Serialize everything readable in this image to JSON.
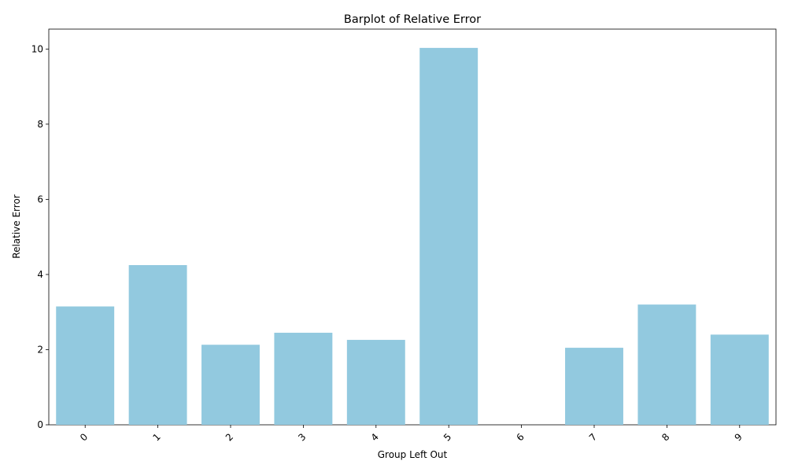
{
  "chart_data": {
    "type": "bar",
    "title": "Barplot of Relative Error",
    "xlabel": "Group Left Out",
    "ylabel": "Relative Error",
    "categories": [
      "0",
      "1",
      "2",
      "3",
      "4",
      "5",
      "6",
      "7",
      "8",
      "9"
    ],
    "values": [
      3.15,
      4.25,
      2.13,
      2.45,
      2.26,
      10.03,
      0.0,
      2.05,
      3.2,
      2.4
    ],
    "ylim": [
      0,
      10.53
    ],
    "yticks": [
      0,
      2,
      4,
      6,
      8,
      10
    ],
    "ytick_labels": [
      "0",
      "2",
      "4",
      "6",
      "8",
      "10"
    ],
    "bar_color": "#92c9df",
    "grid": false,
    "legend": "none",
    "xtick_rotation": "45°"
  }
}
